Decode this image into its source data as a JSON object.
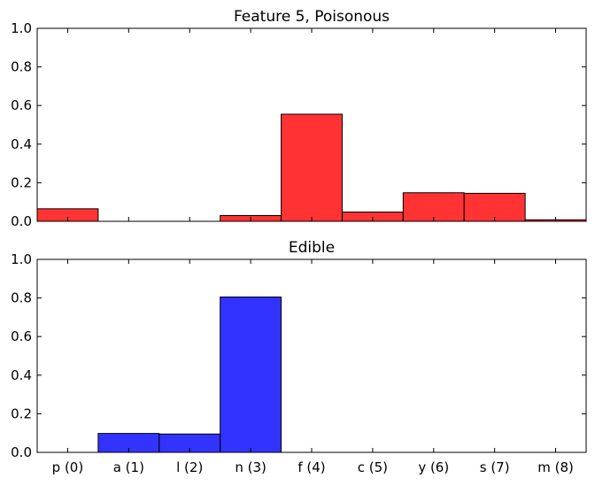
{
  "chart_data": [
    {
      "type": "bar",
      "title": "Feature 5, Poisonous",
      "categories": [
        "p (0)",
        "a (1)",
        "l (2)",
        "n (3)",
        "f (4)",
        "c (5)",
        "y (6)",
        "s (7)",
        "m (8)"
      ],
      "values": [
        0.065,
        0.0,
        0.0,
        0.03,
        0.555,
        0.048,
        0.148,
        0.145,
        0.008
      ],
      "xlabel": "",
      "ylabel": "",
      "ylim": [
        0,
        1.0
      ],
      "yticks": [
        "0.0",
        "0.2",
        "0.4",
        "0.6",
        "0.8",
        "1.0"
      ],
      "show_xtick_labels": false,
      "grid": false,
      "color": "#ff3333"
    },
    {
      "type": "bar",
      "title": "Edible",
      "categories": [
        "p (0)",
        "a (1)",
        "l (2)",
        "n (3)",
        "f (4)",
        "c (5)",
        "y (6)",
        "s (7)",
        "m (8)"
      ],
      "values": [
        0.0,
        0.098,
        0.095,
        0.805,
        0.0,
        0.0,
        0.0,
        0.0,
        0.0
      ],
      "xlabel": "",
      "ylabel": "",
      "ylim": [
        0,
        1.0
      ],
      "yticks": [
        "0.0",
        "0.2",
        "0.4",
        "0.6",
        "0.8",
        "1.0"
      ],
      "show_xtick_labels": true,
      "grid": false,
      "color": "#3333ff"
    }
  ]
}
